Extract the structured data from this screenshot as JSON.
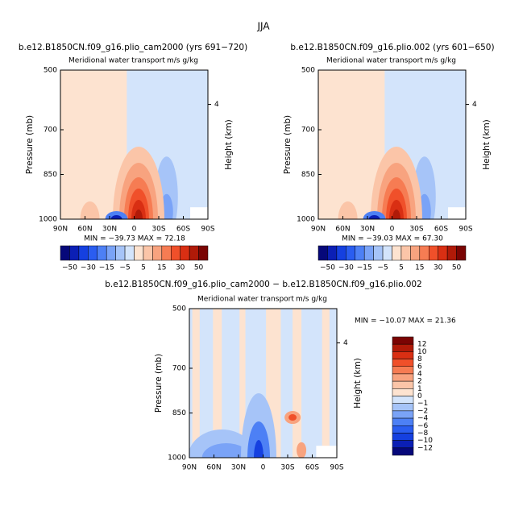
{
  "title": "JJA",
  "panels": [
    {
      "title": "b.e12.B1850CN.f09_g16.plio_cam2000 (yrs 691−720)",
      "long_name": "Meridional water transport",
      "units": "m/s g/kg",
      "y_label": "Pressure (mb)",
      "y_ticks": [
        "500",
        "700",
        "850",
        "1000"
      ],
      "y2_label": "Height (km)",
      "y2_ticks": [
        "4"
      ],
      "x_ticks": [
        "90N",
        "60N",
        "30N",
        "0",
        "30S",
        "60S",
        "90S"
      ],
      "stats": "MIN = −39.73   MAX =  72.18",
      "colorbar": {
        "labels": [
          "−50",
          "−30",
          "−15",
          "−5",
          "5",
          "15",
          "30",
          "50"
        ],
        "colors": [
          "#06087a",
          "#0b1fb5",
          "#1540e0",
          "#2a5df0",
          "#4d80f5",
          "#7aa3f7",
          "#a6c4f8",
          "#d3e4fb",
          "#fde3d0",
          "#fbc5a8",
          "#f8a37f",
          "#f67c53",
          "#f0502a",
          "#d92f13",
          "#b01a08",
          "#7a0403"
        ]
      }
    },
    {
      "title": "b.e12.B1850CN.f09_g16.plio.002 (yrs 601−650)",
      "long_name": "Meridional water transport",
      "units": "m/s g/kg",
      "y_label": "Pressure (mb)",
      "y_ticks": [
        "500",
        "700",
        "850",
        "1000"
      ],
      "y2_label": "Height (km)",
      "y2_ticks": [
        "4"
      ],
      "x_ticks": [
        "90N",
        "60N",
        "30N",
        "0",
        "30S",
        "60S",
        "90S"
      ],
      "stats": "MIN = −39.03   MAX =  67.30",
      "colorbar": {
        "labels": [
          "−50",
          "−30",
          "−15",
          "−5",
          "5",
          "15",
          "30",
          "50"
        ],
        "colors": [
          "#06087a",
          "#0b1fb5",
          "#1540e0",
          "#2a5df0",
          "#4d80f5",
          "#7aa3f7",
          "#a6c4f8",
          "#d3e4fb",
          "#fde3d0",
          "#fbc5a8",
          "#f8a37f",
          "#f67c53",
          "#f0502a",
          "#d92f13",
          "#b01a08",
          "#7a0403"
        ]
      }
    },
    {
      "title": "b.e12.B1850CN.f09_g16.plio_cam2000 − b.e12.B1850CN.f09_g16.plio.002",
      "long_name": "Meridional water transport",
      "units": "m/s g/kg",
      "y_label": "Pressure (mb)",
      "y_ticks": [
        "500",
        "700",
        "850",
        "1000"
      ],
      "y2_label": "Height (km)",
      "y2_ticks": [
        "4"
      ],
      "x_ticks": [
        "90N",
        "60N",
        "30N",
        "0",
        "30S",
        "60S",
        "90S"
      ],
      "stats": "MIN = −10.07   MAX =  21.36",
      "colorbar": {
        "labels": [
          "12",
          "10",
          "8",
          "6",
          "4",
          "2",
          "1",
          "0",
          "−1",
          "−2",
          "−4",
          "−6",
          "−8",
          "−10",
          "−12"
        ],
        "colors": [
          "#7a0403",
          "#b01a08",
          "#d92f13",
          "#f0502a",
          "#f67c53",
          "#f8a37f",
          "#fbc5a8",
          "#fde3d0",
          "#d3e4fb",
          "#a6c4f8",
          "#7aa3f7",
          "#4d80f5",
          "#2a5df0",
          "#1540e0",
          "#0b1fb5",
          "#06087a"
        ]
      }
    }
  ]
}
